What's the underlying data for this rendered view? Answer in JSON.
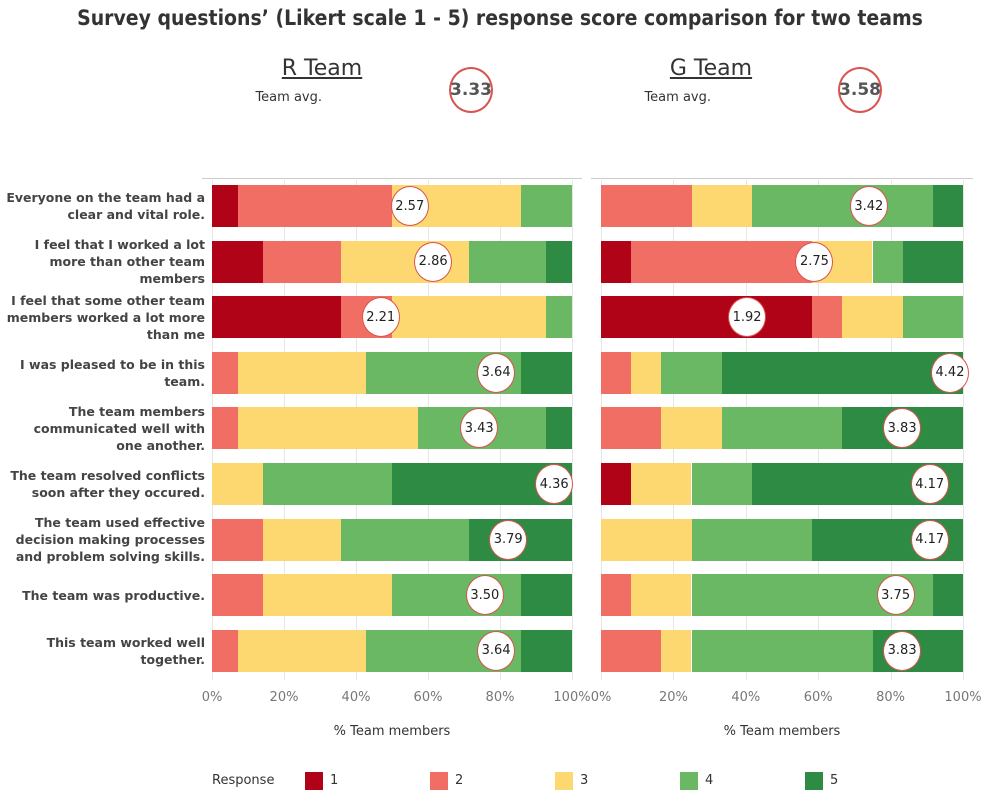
{
  "title": "Survey questions’ (Likert scale 1 - 5) response score comparison for two teams",
  "legend_title": "Response",
  "chart_data": [
    {
      "type": "bar",
      "orientation": "horizontal",
      "stacked": true,
      "title": "R Team",
      "avg_label": "Team avg.",
      "avg": 3.33,
      "categories": [
        "Everyone on the team had a clear and vital role.",
        "I feel that I worked a lot more than other team members",
        "I feel that some other team members worked a lot more than me",
        "I was pleased to be in this team.",
        "The team members communicated well with one another.",
        "The team resolved conflicts soon after they occured.",
        "The team used effective decision making processes and problem solving skills.",
        "The team was productive.",
        "This team worked well together."
      ],
      "series": [
        {
          "name": "1",
          "color": "#b10318",
          "values": [
            7.1,
            14.3,
            35.7,
            0,
            0,
            0,
            0,
            0,
            0
          ]
        },
        {
          "name": "2",
          "color": "#f06e64",
          "values": [
            42.9,
            21.4,
            14.3,
            7.1,
            7.1,
            0,
            14.3,
            14.3,
            7.1
          ]
        },
        {
          "name": "3",
          "color": "#fdd870",
          "values": [
            35.7,
            35.7,
            42.9,
            35.7,
            50,
            14.3,
            21.4,
            35.7,
            35.7
          ]
        },
        {
          "name": "4",
          "color": "#6ab764",
          "values": [
            14.3,
            21.4,
            7.1,
            42.9,
            35.7,
            35.7,
            35.7,
            35.7,
            42.9
          ]
        },
        {
          "name": "5",
          "color": "#2e8b44",
          "values": [
            0,
            7.1,
            0,
            14.3,
            7.1,
            50,
            28.6,
            14.3,
            14.3
          ]
        }
      ],
      "scores": [
        2.57,
        2.86,
        2.21,
        3.64,
        3.43,
        4.36,
        3.79,
        3.5,
        3.64
      ],
      "score_labels": [
        "2.57",
        "2.86",
        "2.21",
        "3.64",
        "3.43",
        "4.36",
        "3.79",
        "3.50",
        "3.64"
      ],
      "xlabel": "% Team members",
      "xlim": [
        0,
        100
      ],
      "xticks": [
        {
          "value": 0,
          "label": "0%"
        },
        {
          "value": 20,
          "label": "20%"
        },
        {
          "value": 40,
          "label": "40%"
        },
        {
          "value": 60,
          "label": "60%"
        },
        {
          "value": 80,
          "label": "80%"
        },
        {
          "value": 100,
          "label": "100%"
        }
      ],
      "grid": true
    },
    {
      "type": "bar",
      "orientation": "horizontal",
      "stacked": true,
      "title": "G Team",
      "avg_label": "Team avg.",
      "avg": 3.58,
      "series": [
        {
          "color": "#b10318",
          "values": [
            0,
            8.3,
            58.3,
            0,
            0,
            8.3,
            0,
            0,
            0
          ]
        },
        {
          "color": "#f06e64",
          "values": [
            25,
            50,
            8.3,
            8.3,
            16.7,
            0,
            0,
            8.3,
            16.7
          ]
        },
        {
          "color": "#fdd870",
          "values": [
            16.7,
            16.7,
            16.7,
            8.3,
            16.7,
            16.7,
            25,
            16.7,
            8.3
          ]
        },
        {
          "color": "#6ab764",
          "values": [
            50,
            8.3,
            16.7,
            16.7,
            33.3,
            16.7,
            33.3,
            66.7,
            50
          ]
        },
        {
          "color": "#2e8b44",
          "values": [
            8.3,
            16.7,
            0,
            66.7,
            33.3,
            58.3,
            41.7,
            8.3,
            25
          ]
        }
      ],
      "scores": [
        3.42,
        2.75,
        1.92,
        4.42,
        3.83,
        4.17,
        4.17,
        3.75,
        3.83
      ],
      "score_labels": [
        "3.42",
        "2.75",
        "1.92",
        "4.42",
        "3.83",
        "4.17",
        "4.17",
        "3.75",
        "3.83"
      ],
      "xlabel": "% Team members",
      "xlim": [
        0,
        100
      ],
      "xticks": [
        {
          "value": 0,
          "label": "0%"
        },
        {
          "value": 20,
          "label": "20%"
        },
        {
          "value": 40,
          "label": "40%"
        },
        {
          "value": 60,
          "label": "60%"
        },
        {
          "value": 80,
          "label": "80%"
        },
        {
          "value": 100,
          "label": "100%"
        }
      ],
      "grid": true
    }
  ]
}
